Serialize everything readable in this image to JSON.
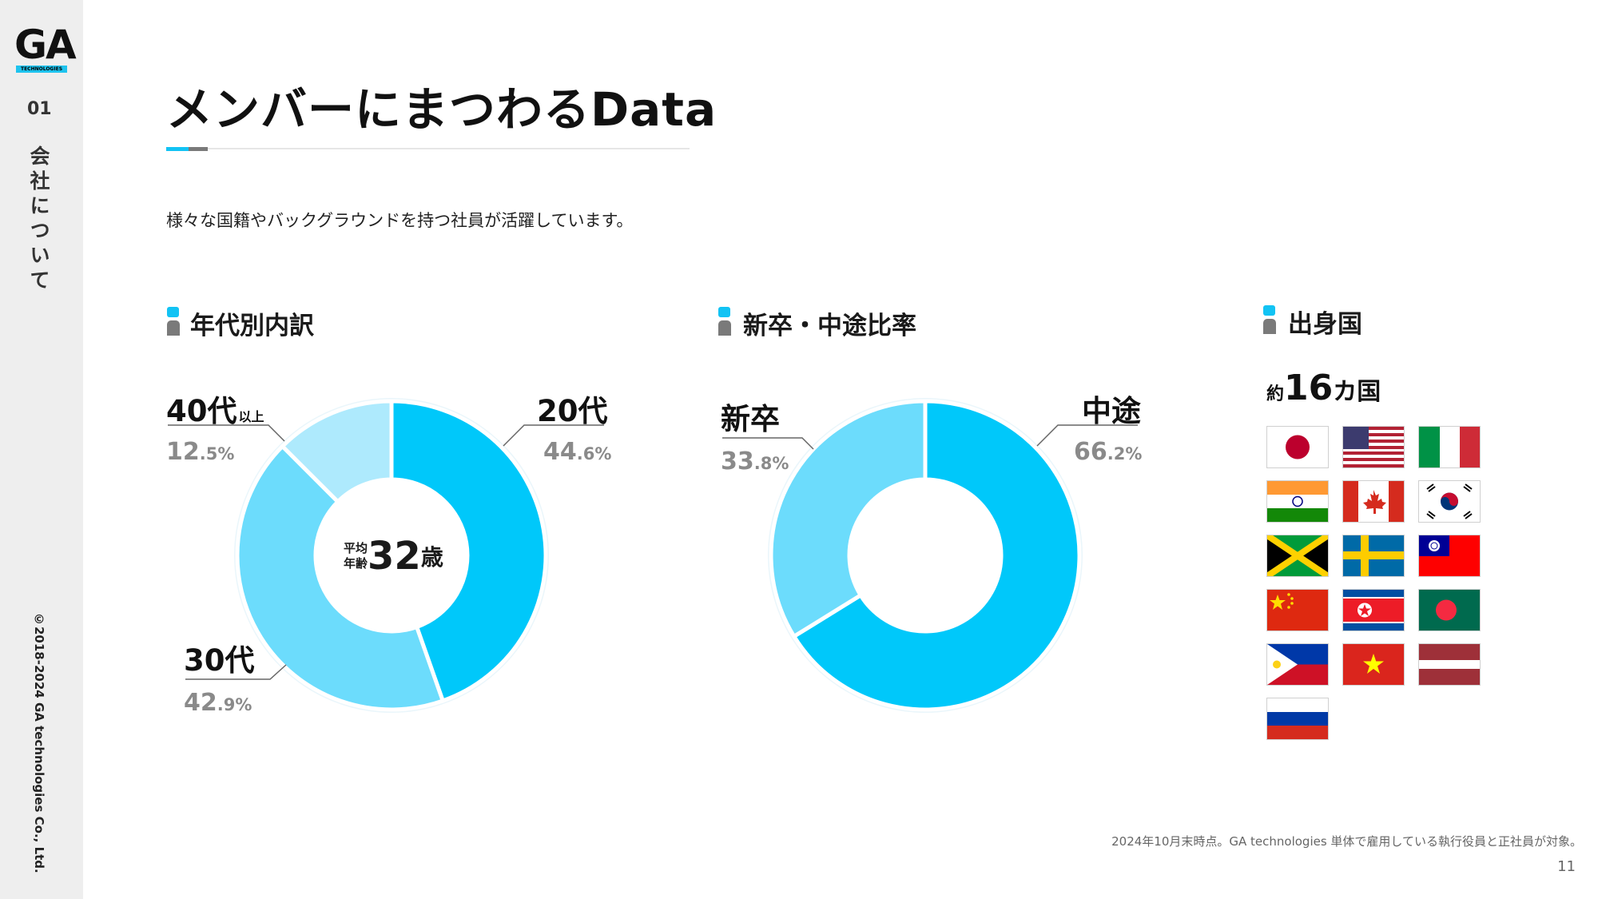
{
  "logo": {
    "main": "GA",
    "sub": "TECHNOLOGIES"
  },
  "sidebar": {
    "section_number": "01",
    "section_title": "会社について",
    "copyright": "©2018-2024 GA technologies Co., Ltd."
  },
  "title": "メンバーにまつわるData",
  "subtitle": "様々な国籍やバックグラウンドを持つ社員が活躍しています。",
  "colors": {
    "primary": "#00c8fa",
    "light": "#6cdcfc",
    "pale": "#aeeafd",
    "gray": "#7a7a7a",
    "accent": "#12c3f4"
  },
  "sections": {
    "age": {
      "heading": "年代別内訳",
      "center_prefix_line1": "平均",
      "center_prefix_line2": "年齢",
      "center_value": "32",
      "center_unit": "歳",
      "labels": [
        {
          "name": "20代",
          "suffix": "",
          "pct_int": "44",
          "pct_dec": ".6%"
        },
        {
          "name": "30代",
          "suffix": "",
          "pct_int": "42",
          "pct_dec": ".9%"
        },
        {
          "name": "40代",
          "suffix": "以上",
          "pct_int": "12",
          "pct_dec": ".5%"
        }
      ]
    },
    "hire": {
      "heading": "新卒・中途比率",
      "labels": [
        {
          "name": "中途",
          "pct_int": "66",
          "pct_dec": ".2%"
        },
        {
          "name": "新卒",
          "pct_int": "33",
          "pct_dec": ".8%"
        }
      ]
    },
    "countries": {
      "heading": "出身国",
      "count_prefix": "約",
      "count_value": "16",
      "count_suffix": "カ国",
      "flags": [
        "japan-flag",
        "usa-flag",
        "italy-flag",
        "india-flag",
        "canada-flag",
        "south-korea-flag",
        "jamaica-flag",
        "sweden-flag",
        "taiwan-flag",
        "china-flag",
        "north-korea-flag",
        "bangladesh-flag",
        "philippines-flag",
        "vietnam-flag",
        "latvia-flag",
        "russia-flag"
      ]
    }
  },
  "chart_data": [
    {
      "type": "pie",
      "title": "年代別内訳",
      "categories": [
        "20代",
        "30代",
        "40代以上"
      ],
      "values": [
        44.6,
        42.9,
        12.5
      ],
      "colors": [
        "#00c8fa",
        "#6cdcfc",
        "#aeeafd"
      ],
      "center_text": "平均年齢32歳"
    },
    {
      "type": "pie",
      "title": "新卒・中途比率",
      "categories": [
        "中途",
        "新卒"
      ],
      "values": [
        66.2,
        33.8
      ],
      "colors": [
        "#00c8fa",
        "#6cdcfc"
      ]
    }
  ],
  "footnote": "2024年10月末時点。GA technologies 単体で雇用している執行役員と正社員が対象。",
  "page_number": "11"
}
